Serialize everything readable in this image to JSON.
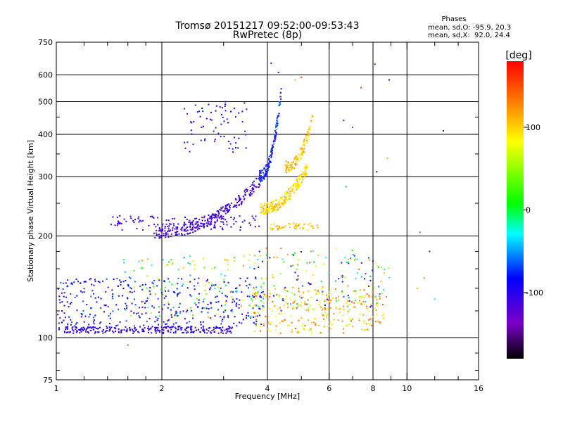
{
  "chart_data": {
    "type": "scatter",
    "title_lines": [
      "Tromsø 20151217 09:52:00-09:53:43",
      "RwPretec (8p)"
    ],
    "xlabel": "Frequency [MHz]",
    "ylabel": "Stationary phase Virtual Height [km]",
    "x_scale": "log",
    "y_scale": "log",
    "xlim": [
      1,
      16
    ],
    "ylim": [
      75,
      750
    ],
    "x_ticks": [
      1,
      2,
      4,
      6,
      8,
      10,
      16
    ],
    "x_tick_labels": [
      "1",
      "2",
      "4",
      "6",
      "8",
      "10",
      "16"
    ],
    "x_minor_ticks": [
      1.2,
      1.4,
      1.6,
      1.8,
      3,
      5,
      7,
      9,
      12,
      14
    ],
    "y_ticks": [
      75,
      100,
      200,
      300,
      400,
      500,
      600,
      750
    ],
    "y_tick_labels": [
      "75",
      "100",
      "200",
      "300",
      "400",
      "500",
      "600",
      "750"
    ],
    "y_minor_ticks": [
      80,
      90,
      120,
      140,
      160,
      180,
      250,
      350,
      450
    ],
    "grid_x": [
      2,
      4,
      6,
      8,
      10
    ],
    "grid_y": [
      100,
      200,
      300,
      400,
      500,
      600
    ],
    "grid": true,
    "phases": {
      "heading": "Phases",
      "o_line": "mean, sd,O: -95.9, 20.3",
      "x_line": "mean, sd,X:  92.0, 24.4"
    },
    "colorbar": {
      "label": "[deg]",
      "range": [
        -180,
        180
      ],
      "ticks": [
        100,
        0,
        -100
      ],
      "tick_labels": [
        "100",
        "0",
        "-100"
      ],
      "colormap": "rainbow-black-to-red"
    },
    "clusters": [
      {
        "name": "",
        "f": [
          1.0,
          3.2
        ],
        "h": [
          103,
          108
        ],
        "phase": [
          -115,
          -90
        ],
        "n": 260,
        "trend": "flat"
      },
      {
        "name": "",
        "f": [
          1.0,
          3.9
        ],
        "h": [
          108,
          150
        ],
        "phase": [
          -120,
          -60
        ],
        "n": 360,
        "trend": "random"
      },
      {
        "name": "",
        "f": [
          1.5,
          4.0
        ],
        "h": [
          115,
          175
        ],
        "phase": [
          -60,
          130
        ],
        "n": 120,
        "trend": "random"
      },
      {
        "name": "",
        "f": [
          3.6,
          8.6
        ],
        "h": [
          103,
          140
        ],
        "phase": [
          60,
          150
        ],
        "n": 260,
        "trend": "random"
      },
      {
        "name": "",
        "f": [
          3.5,
          9.0
        ],
        "h": [
          120,
          185
        ],
        "phase": [
          -120,
          150
        ],
        "n": 170,
        "trend": "random"
      },
      {
        "name": "",
        "f": [
          1.9,
          3.9
        ],
        "h": [
          205,
          300
        ],
        "phase": [
          -125,
          -95
        ],
        "n": 280,
        "trend": "rising"
      },
      {
        "name": "",
        "f": [
          1.4,
          3.8
        ],
        "h": [
          208,
          230
        ],
        "phase": [
          -125,
          -95
        ],
        "n": 110,
        "trend": "flat"
      },
      {
        "name": "",
        "f": [
          3.8,
          4.4
        ],
        "h": [
          300,
          560
        ],
        "phase": [
          -115,
          -40
        ],
        "n": 150,
        "trend": "rising"
      },
      {
        "name": "",
        "f": [
          3.8,
          5.2
        ],
        "h": [
          240,
          320
        ],
        "phase": [
          70,
          120
        ],
        "n": 220,
        "trend": "rising"
      },
      {
        "name": "",
        "f": [
          4.5,
          5.4
        ],
        "h": [
          320,
          450
        ],
        "phase": [
          80,
          130
        ],
        "n": 110,
        "trend": "rising"
      },
      {
        "name": "",
        "f": [
          2.3,
          3.5
        ],
        "h": [
          350,
          500
        ],
        "phase": [
          -130,
          -70
        ],
        "n": 70,
        "trend": "random"
      },
      {
        "name": "",
        "f": [
          4.0,
          5.6
        ],
        "h": [
          208,
          218
        ],
        "phase": [
          90,
          120
        ],
        "n": 50,
        "trend": "flat"
      }
    ],
    "scattered_points": [
      {
        "f": 1.6,
        "h": 95,
        "phase": 150
      },
      {
        "f": 4.1,
        "h": 650,
        "phase": -100
      },
      {
        "f": 4.3,
        "h": 610,
        "phase": -110
      },
      {
        "f": 7.4,
        "h": 550,
        "phase": 160
      },
      {
        "f": 8.1,
        "h": 645,
        "phase": -110
      },
      {
        "f": 8.9,
        "h": 580,
        "phase": -90
      },
      {
        "f": 12.7,
        "h": 410,
        "phase": -100
      },
      {
        "f": 6.6,
        "h": 440,
        "phase": -110
      },
      {
        "f": 7.0,
        "h": 420,
        "phase": -60
      },
      {
        "f": 8.2,
        "h": 310,
        "phase": -90
      },
      {
        "f": 6.7,
        "h": 280,
        "phase": -50
      },
      {
        "f": 8.8,
        "h": 340,
        "phase": 120
      },
      {
        "f": 10.9,
        "h": 205,
        "phase": 150
      },
      {
        "f": 11.6,
        "h": 180,
        "phase": -100
      },
      {
        "f": 11.2,
        "h": 150,
        "phase": 130
      },
      {
        "f": 10.7,
        "h": 140,
        "phase": 120
      },
      {
        "f": 12.0,
        "h": 130,
        "phase": -10
      },
      {
        "f": 5.0,
        "h": 590,
        "phase": 150
      },
      {
        "f": 4.8,
        "h": 580,
        "phase": 110
      }
    ]
  }
}
